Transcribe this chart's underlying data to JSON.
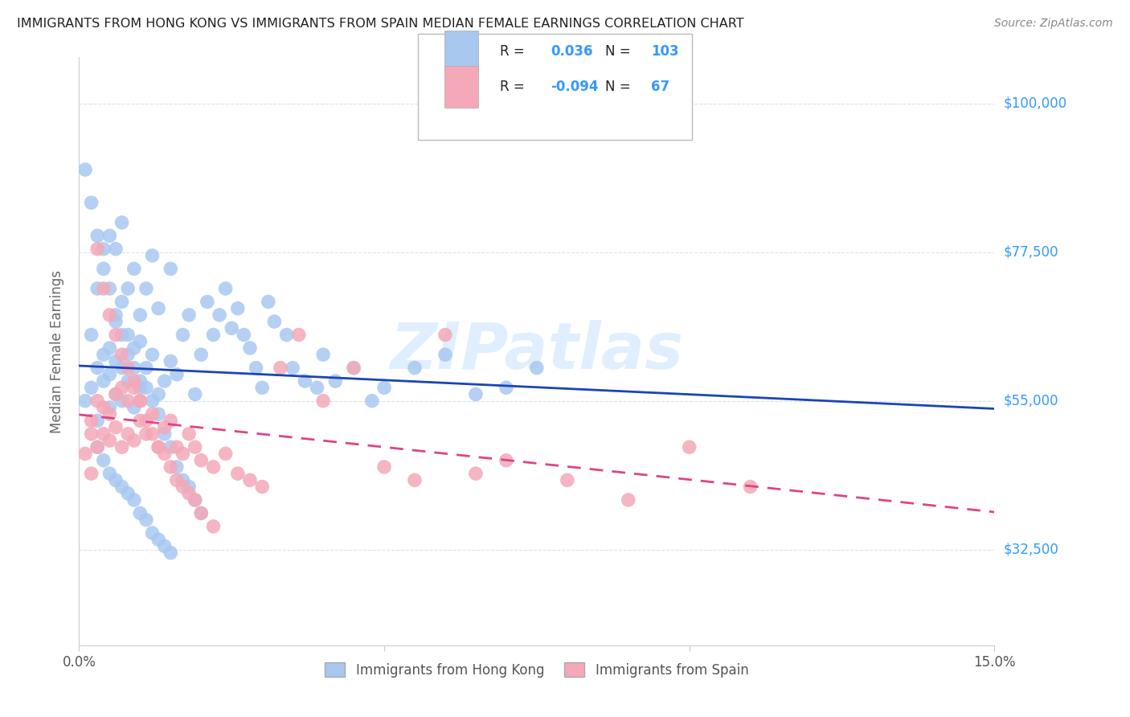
{
  "title": "IMMIGRANTS FROM HONG KONG VS IMMIGRANTS FROM SPAIN MEDIAN FEMALE EARNINGS CORRELATION CHART",
  "source": "Source: ZipAtlas.com",
  "ylabel": "Median Female Earnings",
  "yticks": [
    32500,
    55000,
    77500,
    100000
  ],
  "ytick_labels": [
    "$32,500",
    "$55,000",
    "$77,500",
    "$100,000"
  ],
  "xmin": 0.0,
  "xmax": 0.15,
  "ymin": 18000,
  "ymax": 107000,
  "hk_R": 0.036,
  "hk_N": 103,
  "spain_R": -0.094,
  "spain_N": 67,
  "hk_color": "#a8c8f0",
  "spain_color": "#f4a8b8",
  "hk_line_color": "#1a44bb",
  "spain_line_color": "#dd4488",
  "background_color": "#ffffff",
  "grid_color": "#e0e0e0",
  "title_color": "#222222",
  "right_label_color": "#3399ff",
  "watermark": "ZIPatlas",
  "hk_scatter_x": [
    0.001,
    0.002,
    0.002,
    0.003,
    0.003,
    0.003,
    0.004,
    0.004,
    0.004,
    0.005,
    0.005,
    0.005,
    0.005,
    0.006,
    0.006,
    0.006,
    0.006,
    0.007,
    0.007,
    0.007,
    0.007,
    0.008,
    0.008,
    0.008,
    0.009,
    0.009,
    0.009,
    0.01,
    0.01,
    0.01,
    0.011,
    0.011,
    0.012,
    0.012,
    0.013,
    0.013,
    0.014,
    0.015,
    0.015,
    0.016,
    0.017,
    0.018,
    0.019,
    0.02,
    0.021,
    0.022,
    0.023,
    0.024,
    0.025,
    0.026,
    0.027,
    0.028,
    0.029,
    0.03,
    0.031,
    0.032,
    0.034,
    0.035,
    0.037,
    0.039,
    0.04,
    0.042,
    0.045,
    0.048,
    0.05,
    0.055,
    0.06,
    0.065,
    0.07,
    0.075,
    0.001,
    0.002,
    0.003,
    0.004,
    0.005,
    0.006,
    0.007,
    0.008,
    0.009,
    0.01,
    0.011,
    0.012,
    0.013,
    0.014,
    0.015,
    0.016,
    0.017,
    0.018,
    0.019,
    0.02,
    0.003,
    0.004,
    0.005,
    0.006,
    0.007,
    0.008,
    0.009,
    0.01,
    0.011,
    0.012,
    0.013,
    0.014,
    0.015
  ],
  "hk_scatter_y": [
    55000,
    57000,
    65000,
    52000,
    60000,
    72000,
    58000,
    62000,
    75000,
    54000,
    59000,
    63000,
    80000,
    56000,
    61000,
    67000,
    78000,
    55000,
    60000,
    70000,
    82000,
    58000,
    65000,
    72000,
    54000,
    63000,
    75000,
    57000,
    64000,
    68000,
    60000,
    72000,
    62000,
    77000,
    56000,
    69000,
    58000,
    61000,
    75000,
    59000,
    65000,
    68000,
    56000,
    62000,
    70000,
    65000,
    68000,
    72000,
    66000,
    69000,
    65000,
    63000,
    60000,
    57000,
    70000,
    67000,
    65000,
    60000,
    58000,
    57000,
    62000,
    58000,
    60000,
    55000,
    57000,
    60000,
    62000,
    56000,
    57000,
    60000,
    90000,
    85000,
    80000,
    78000,
    72000,
    68000,
    65000,
    62000,
    60000,
    58000,
    57000,
    55000,
    53000,
    50000,
    48000,
    45000,
    43000,
    42000,
    40000,
    38000,
    48000,
    46000,
    44000,
    43000,
    42000,
    41000,
    40000,
    38000,
    37000,
    35000,
    34000,
    33000,
    32000
  ],
  "spain_scatter_x": [
    0.001,
    0.002,
    0.002,
    0.003,
    0.003,
    0.004,
    0.004,
    0.005,
    0.005,
    0.006,
    0.006,
    0.007,
    0.007,
    0.008,
    0.008,
    0.009,
    0.009,
    0.01,
    0.01,
    0.011,
    0.012,
    0.013,
    0.014,
    0.015,
    0.016,
    0.017,
    0.018,
    0.019,
    0.02,
    0.022,
    0.024,
    0.026,
    0.028,
    0.03,
    0.033,
    0.036,
    0.04,
    0.045,
    0.05,
    0.055,
    0.06,
    0.065,
    0.07,
    0.08,
    0.09,
    0.1,
    0.11,
    0.002,
    0.003,
    0.004,
    0.005,
    0.006,
    0.007,
    0.008,
    0.009,
    0.01,
    0.011,
    0.012,
    0.013,
    0.014,
    0.015,
    0.016,
    0.017,
    0.018,
    0.019,
    0.02,
    0.022
  ],
  "spain_scatter_y": [
    47000,
    50000,
    52000,
    55000,
    48000,
    54000,
    50000,
    53000,
    49000,
    56000,
    51000,
    57000,
    48000,
    55000,
    50000,
    58000,
    49000,
    55000,
    52000,
    50000,
    53000,
    48000,
    51000,
    52000,
    48000,
    47000,
    50000,
    48000,
    46000,
    45000,
    47000,
    44000,
    43000,
    42000,
    60000,
    65000,
    55000,
    60000,
    45000,
    43000,
    65000,
    44000,
    46000,
    43000,
    40000,
    48000,
    42000,
    44000,
    78000,
    72000,
    68000,
    65000,
    62000,
    60000,
    57000,
    55000,
    52000,
    50000,
    48000,
    47000,
    45000,
    43000,
    42000,
    41000,
    40000,
    38000,
    36000
  ],
  "legend_hk_r": "0.036",
  "legend_hk_n": "103",
  "legend_spain_r": "-0.094",
  "legend_spain_n": "67"
}
